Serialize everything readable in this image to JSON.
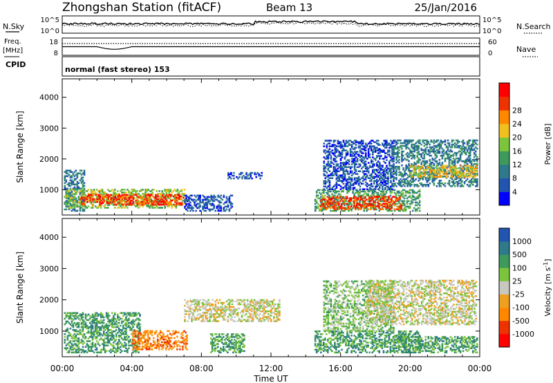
{
  "header": {
    "station": "Zhongshan Station (fitACF)",
    "beam": "Beam 13",
    "date": "25/Jan/2016"
  },
  "strips": {
    "nsky_label": "N.Sky",
    "nsearch_label": "N.Search",
    "freq_label_top": "Freq.",
    "freq_label_unit": "[MHz]",
    "nave_label": "Nave",
    "cpid_label": "CPID",
    "cpid_text": "normal (fast stereo) 153",
    "noise_ticks_left": [
      "10^5",
      "10^0"
    ],
    "noise_ticks_right": [
      "10^5",
      "10^0"
    ],
    "freq_ticks": [
      "18",
      "8"
    ],
    "nave_ticks": [
      "60",
      "0"
    ]
  },
  "chart_data": [
    {
      "type": "heatmap",
      "name": "power",
      "ylabel": "Slant Range [km]",
      "xlabel": "Time UT",
      "x_ticks": [
        "00:00",
        "04:00",
        "08:00",
        "12:00",
        "16:00",
        "20:00",
        "00:00"
      ],
      "y_ticks": [
        1000,
        2000,
        3000,
        4000
      ],
      "xlim_hours": [
        0,
        24
      ],
      "ylim_km": [
        180,
        4600
      ],
      "colorbar": {
        "label": "Power [dB]",
        "ticks": [
          "28",
          "24",
          "20",
          "16",
          "12",
          "8",
          "4"
        ],
        "colors": [
          "#0000ff",
          "#2255b0",
          "#2e7a8a",
          "#3d9a5a",
          "#7cc43c",
          "#f0c020",
          "#ff8800",
          "#ee3300",
          "#ff0000"
        ]
      },
      "regions": [
        {
          "t0": 0.1,
          "t1": 1.3,
          "r0": 300,
          "r1": 1650,
          "level": 2
        },
        {
          "t0": 0.1,
          "t1": 7.0,
          "r0": 400,
          "r1": 1000,
          "level": 4
        },
        {
          "t0": 1.0,
          "t1": 7.0,
          "r0": 500,
          "r1": 850,
          "level": 7
        },
        {
          "t0": 7.0,
          "t1": 9.8,
          "r0": 300,
          "r1": 800,
          "level": 1
        },
        {
          "t0": 9.5,
          "t1": 11.5,
          "r0": 1350,
          "r1": 1550,
          "level": 1
        },
        {
          "t0": 14.5,
          "t1": 20.5,
          "r0": 300,
          "r1": 1000,
          "level": 3
        },
        {
          "t0": 14.8,
          "t1": 19.5,
          "r0": 350,
          "r1": 800,
          "level": 7
        },
        {
          "t0": 15.0,
          "t1": 19.0,
          "r0": 1000,
          "r1": 2600,
          "level": 1
        },
        {
          "t0": 19.0,
          "t1": 23.8,
          "r0": 1100,
          "r1": 2600,
          "level": 2
        },
        {
          "t0": 20.0,
          "t1": 23.8,
          "r0": 1400,
          "r1": 1800,
          "level": 5
        }
      ]
    },
    {
      "type": "heatmap",
      "name": "velocity",
      "ylabel": "Slant Range [km]",
      "xlabel": "Time UT",
      "x_ticks": [
        "00:00",
        "04:00",
        "08:00",
        "12:00",
        "16:00",
        "20:00",
        "00:00"
      ],
      "y_ticks": [
        1000,
        2000,
        3000,
        4000
      ],
      "xlim_hours": [
        0,
        24
      ],
      "ylim_km": [
        180,
        4600
      ],
      "colorbar": {
        "label": "Velocity [m s",
        "label_sup": "-1",
        "label_end": "]",
        "ticks": [
          "1000",
          "500",
          "100",
          "25",
          "-25",
          "-100",
          "-500",
          "-1000"
        ],
        "colors": [
          "#ff0000",
          "#ee3300",
          "#ff8800",
          "#f0a020",
          "#c8c8c0",
          "#7cc43c",
          "#3d9a5a",
          "#2e7a8a",
          "#2255b0"
        ]
      },
      "regions": [
        {
          "t0": 0.1,
          "t1": 4.5,
          "r0": 300,
          "r1": 1600,
          "level": 6
        },
        {
          "t0": 4.0,
          "t1": 7.2,
          "r0": 400,
          "r1": 1000,
          "level": 2
        },
        {
          "t0": 7.0,
          "t1": 12.5,
          "r0": 1300,
          "r1": 2000,
          "level": 4
        },
        {
          "t0": 8.5,
          "t1": 10.5,
          "r0": 300,
          "r1": 900,
          "level": 6
        },
        {
          "t0": 14.5,
          "t1": 20.5,
          "r0": 300,
          "r1": 1000,
          "level": 6
        },
        {
          "t0": 15.0,
          "t1": 19.0,
          "r0": 1000,
          "r1": 2600,
          "level": 5
        },
        {
          "t0": 17.5,
          "t1": 23.8,
          "r0": 1200,
          "r1": 2600,
          "level": 4
        },
        {
          "t0": 19.0,
          "t1": 23.8,
          "r0": 300,
          "r1": 800,
          "level": 6
        }
      ]
    }
  ],
  "noise_data": {
    "sky_level": 0.55,
    "search_level": 0.45,
    "freq_level": 0.5,
    "nave_level": 0.75
  }
}
